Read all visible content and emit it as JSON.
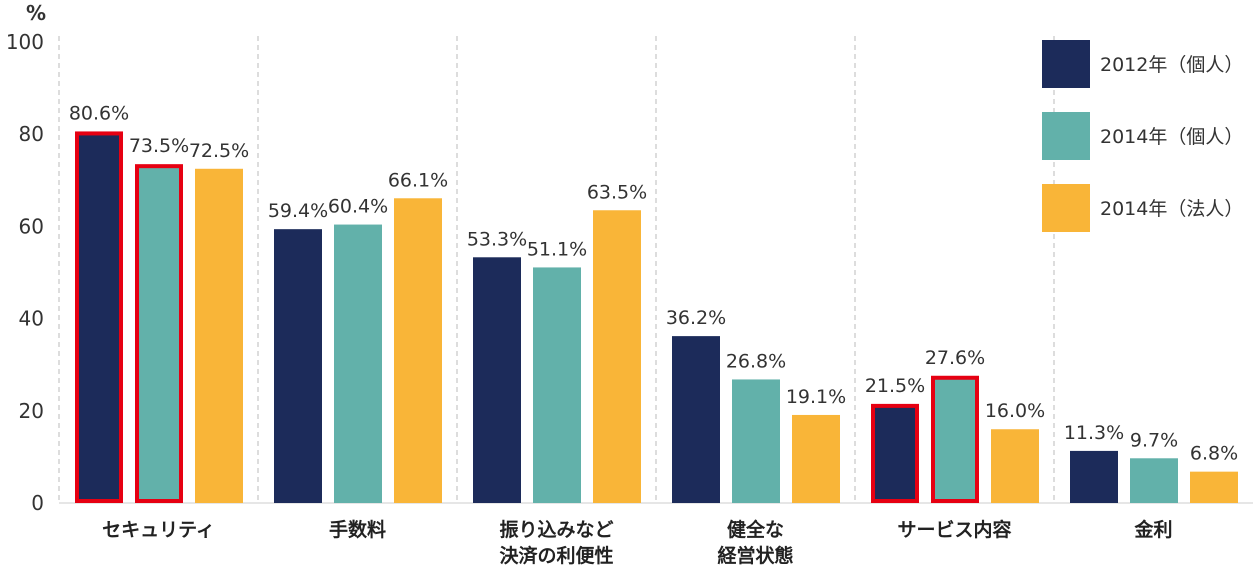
{
  "chart_data": {
    "type": "bar",
    "unit_label": "%",
    "ylim": [
      0,
      100
    ],
    "yticks": [
      "0",
      "20",
      "40",
      "60",
      "80",
      "100"
    ],
    "categories": [
      [
        "セキュリティ"
      ],
      [
        "手数料"
      ],
      [
        "振り込みなど",
        "決済の利便性"
      ],
      [
        "健全な",
        "経営状態"
      ],
      [
        "サービス内容"
      ],
      [
        "金利"
      ]
    ],
    "series": [
      {
        "name": "2012年（個人）",
        "color": "#1c2b5a",
        "values": [
          80.6,
          59.4,
          53.3,
          36.2,
          21.5,
          11.3
        ],
        "labels": [
          "80.6%",
          "59.4%",
          "53.3%",
          "36.2%",
          "21.5%",
          "11.3%"
        ]
      },
      {
        "name": "2014年（個人）",
        "color": "#62b1aa",
        "values": [
          73.5,
          60.4,
          51.1,
          26.8,
          27.6,
          9.7
        ],
        "labels": [
          "73.5%",
          "60.4%",
          "51.1%",
          "26.8%",
          "27.6%",
          "9.7%"
        ]
      },
      {
        "name": "2014年（法人）",
        "color": "#f9b538",
        "values": [
          72.5,
          66.1,
          63.5,
          19.1,
          16.0,
          6.8
        ],
        "labels": [
          "72.5%",
          "66.1%",
          "63.5%",
          "19.1%",
          "16.0%",
          "6.8%"
        ]
      }
    ],
    "highlighted": [
      {
        "series": 0,
        "category": 0
      },
      {
        "series": 1,
        "category": 0
      },
      {
        "series": 0,
        "category": 4
      },
      {
        "series": 1,
        "category": 4
      }
    ],
    "highlight_color": "#e60012",
    "grid": "dashed vertical separators",
    "legend_position": "top-right"
  }
}
